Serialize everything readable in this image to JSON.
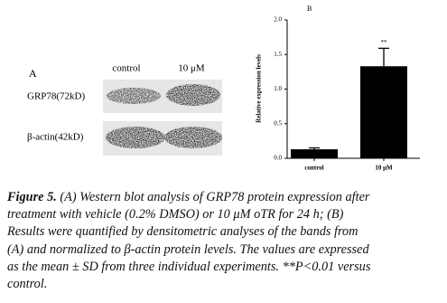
{
  "panel_a": {
    "label": "A",
    "lanes": [
      "control",
      "10 μM"
    ],
    "bands": [
      "GRP78(72kD)",
      "β-actin(42kD)"
    ]
  },
  "chart_data": {
    "type": "bar",
    "label": "B",
    "y_label": "Relative expression levels",
    "categories": [
      "control",
      "10 μM"
    ],
    "values": [
      0.13,
      1.33
    ],
    "errors": [
      0.02,
      0.26
    ],
    "annotation": "**",
    "color": "#000000",
    "ylim": [
      0,
      2
    ],
    "yticks": [
      {
        "value": 0,
        "label": "0.0"
      },
      0.5,
      {
        "value": 1,
        "label": "1.0"
      },
      1.5,
      {
        "value": 2,
        "label": "2.0"
      }
    ]
  },
  "caption": {
    "label": "Figure 5.",
    "lines": [
      "(A) Western blot analysis of GRP78 protein expression after",
      "treatment with vehicle (0.2% DMSO) or 10 μM oTR for 24 h; (B)",
      "Results were quantified by densitometric analyses of the bands from",
      "(A) and normalized to β-actin protein levels. The values are expressed",
      "as the mean ± SD from three individual experiments. **P<0.01 versus",
      "control."
    ]
  }
}
